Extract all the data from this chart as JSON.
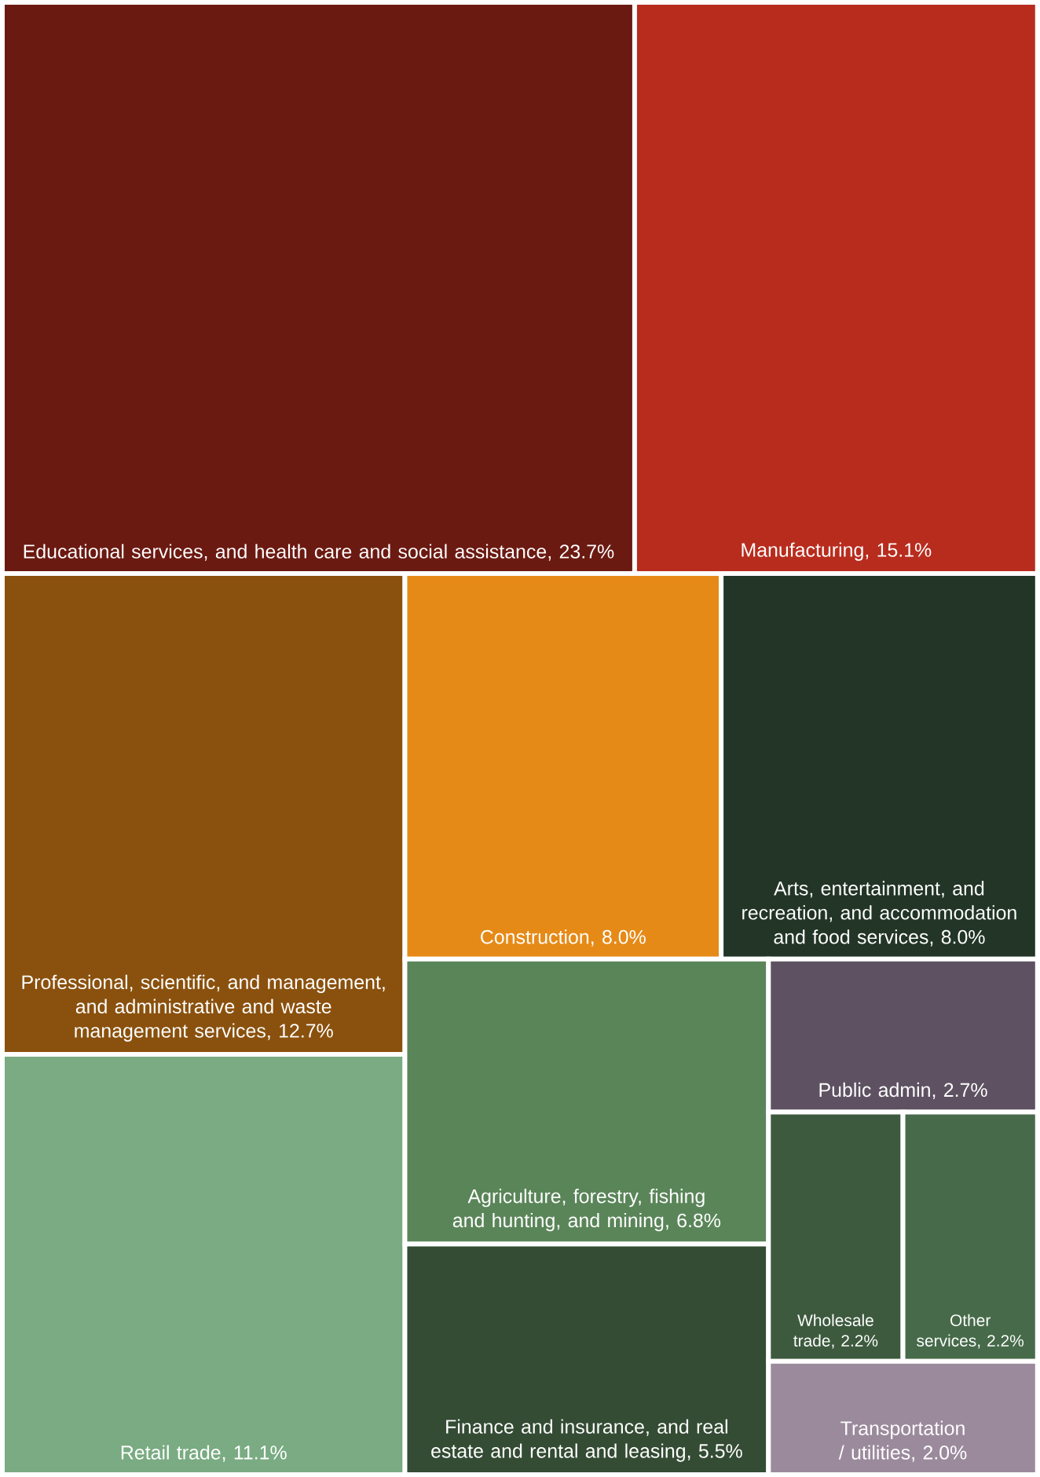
{
  "chart_data": {
    "type": "other",
    "categories": [
      "Educational services, and health care and social assistance",
      "Manufacturing",
      "Professional, scientific, and management, and administrative and waste management services",
      "Retail trade",
      "Construction",
      "Arts, entertainment, and recreation, and accommodation and food services",
      "Agriculture, forestry, fishing and hunting, and mining",
      "Finance and insurance, and real estate and rental and leasing",
      "Public admin",
      "Wholesale trade",
      "Other services",
      "Transportation / utilities"
    ],
    "values": [
      23.7,
      15.1,
      12.7,
      11.1,
      8.0,
      8.0,
      6.8,
      5.5,
      2.7,
      2.2,
      2.2,
      2.0
    ],
    "value_labels": [
      ", 23.7%",
      ", 15.1%",
      ", 12.7%",
      ", 11.1%",
      ", 8.0%",
      ", 8.0%",
      ", 6.8%",
      ", 5.5%",
      ", 2.7%",
      ", 2.2%",
      ", 2.2%",
      ", 2.0%"
    ],
    "colors": [
      "#6b1a12",
      "#b82c1e",
      "#8a510e",
      "#7aab82",
      "#e68a17",
      "#223526",
      "#5a8559",
      "#344c34",
      "#5e5262",
      "#3d5a3e",
      "#476b4a",
      "#9b8a9c"
    ]
  }
}
